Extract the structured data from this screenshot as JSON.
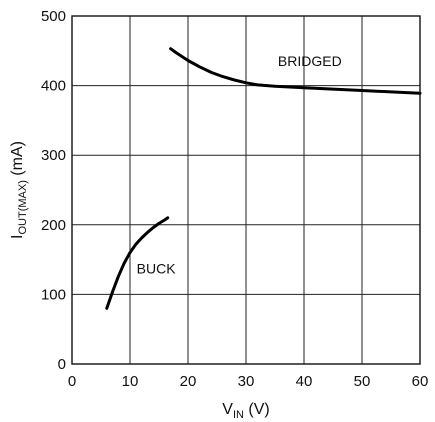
{
  "chart_data": {
    "type": "line",
    "xlabel": {
      "main": "V",
      "sub": "IN",
      "unit": " (V)"
    },
    "ylabel": {
      "main": "I",
      "sub": "OUT(MAX)",
      "unit": " (mA)"
    },
    "xlim": [
      0,
      60
    ],
    "ylim": [
      0,
      500
    ],
    "xticks": [
      0,
      10,
      20,
      30,
      40,
      50,
      60
    ],
    "yticks": [
      0,
      100,
      200,
      300,
      400,
      500
    ],
    "grid": true,
    "series": [
      {
        "name": "BUCK",
        "x": [
          6,
          7,
          8,
          9,
          10,
          11,
          12,
          13,
          14,
          15,
          16,
          16.5
        ],
        "y": [
          80,
          104,
          126,
          145,
          160,
          172,
          181,
          189,
          196,
          202,
          207,
          210
        ]
      },
      {
        "name": "BRIDGED",
        "x": [
          17,
          18,
          20,
          22,
          24,
          26,
          28,
          30,
          32,
          35,
          40,
          45,
          50,
          55,
          60
        ],
        "y": [
          453,
          447,
          436,
          427,
          419,
          413,
          408,
          404,
          401,
          399,
          397,
          395,
          393,
          391,
          389
        ]
      }
    ],
    "annotations": [
      {
        "text": "BRIDGED",
        "series": "BRIDGED"
      },
      {
        "text": "BUCK",
        "series": "BUCK"
      }
    ]
  }
}
